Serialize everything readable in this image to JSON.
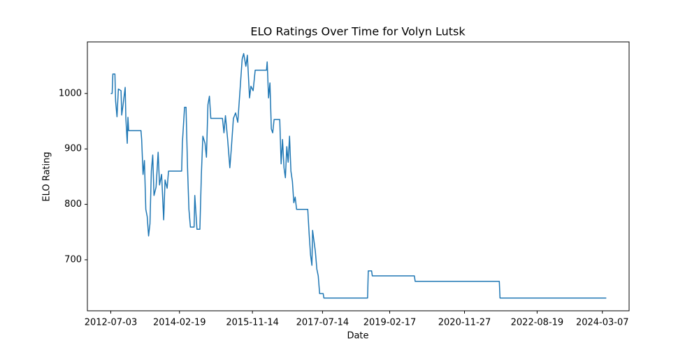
{
  "chart_data": {
    "type": "line",
    "title": "ELO Ratings Over Time for Volyn Lutsk",
    "x_label": "Date",
    "y_label": "ELO Rating",
    "color": "#1f77b4",
    "x": [
      "2012-07-03",
      "2012-07-15",
      "2012-07-21",
      "2012-08-08",
      "2012-08-14",
      "2012-08-26",
      "2012-09-07",
      "2012-09-30",
      "2012-10-06",
      "2012-10-18",
      "2012-11-05",
      "2012-11-11",
      "2012-11-23",
      "2012-11-29",
      "2012-12-05",
      "2013-03-22",
      "2013-03-28",
      "2013-04-09",
      "2013-04-21",
      "2013-05-03",
      "2013-05-15",
      "2013-05-27",
      "2013-06-08",
      "2013-06-20",
      "2013-07-02",
      "2013-07-13",
      "2013-07-31",
      "2013-08-18",
      "2013-08-30",
      "2013-09-17",
      "2013-10-05",
      "2013-10-17",
      "2013-11-04",
      "2013-11-16",
      "2014-03-10",
      "2014-03-16",
      "2014-04-04",
      "2014-04-17",
      "2014-04-30",
      "2014-05-12",
      "2014-05-25",
      "2014-06-26",
      "2014-07-02",
      "2014-07-21",
      "2014-08-15",
      "2014-08-28",
      "2014-09-10",
      "2014-09-29",
      "2014-10-11",
      "2014-10-24",
      "2014-11-06",
      "2014-11-18",
      "2015-02-27",
      "2015-03-12",
      "2015-03-25",
      "2015-04-13",
      "2015-05-02",
      "2015-05-14",
      "2015-06-02",
      "2015-06-21",
      "2015-07-10",
      "2015-07-29",
      "2015-08-17",
      "2015-08-30",
      "2015-09-18",
      "2015-10-01",
      "2015-10-20",
      "2015-11-01",
      "2015-11-20",
      "2015-12-08",
      "2016-03-15",
      "2016-03-21",
      "2016-04-02",
      "2016-04-14",
      "2016-04-26",
      "2016-05-08",
      "2016-05-20",
      "2016-07-08",
      "2016-07-20",
      "2016-08-01",
      "2016-08-14",
      "2016-08-26",
      "2016-09-07",
      "2016-09-19",
      "2016-10-01",
      "2016-10-13",
      "2016-10-26",
      "2016-11-07",
      "2016-11-19",
      "2016-12-01",
      "2017-03-08",
      "2017-03-20",
      "2017-04-01",
      "2017-04-13",
      "2017-04-19",
      "2017-05-01",
      "2017-05-13",
      "2017-05-26",
      "2017-06-07",
      "2017-06-19",
      "2017-07-20",
      "2017-07-26",
      "2018-08-09",
      "2018-08-15",
      "2018-09-13",
      "2018-09-19",
      "2019-09-19",
      "2019-09-26",
      "2021-09-25",
      "2021-10-01",
      "2024-04-10"
    ],
    "values": [
      1000,
      1000,
      1035,
      1035,
      986,
      958,
      1008,
      1005,
      961,
      980,
      1011,
      955,
      910,
      957,
      933,
      933,
      917,
      854,
      879,
      791,
      778,
      743,
      765,
      860,
      889,
      816,
      831,
      894,
      835,
      854,
      772,
      844,
      829,
      860,
      860,
      910,
      975,
      975,
      866,
      791,
      759,
      759,
      816,
      755,
      755,
      854,
      923,
      910,
      885,
      980,
      995,
      955,
      955,
      929,
      960,
      917,
      866,
      898,
      955,
      965,
      948,
      1005,
      1062,
      1072,
      1049,
      1069,
      992,
      1013,
      1005,
      1042,
      1042,
      1057,
      992,
      1019,
      936,
      929,
      953,
      953,
      873,
      917,
      866,
      848,
      904,
      876,
      923,
      860,
      841,
      803,
      813,
      791,
      791,
      747,
      709,
      690,
      753,
      734,
      715,
      683,
      671,
      639,
      639,
      631,
      631,
      680,
      680,
      671,
      671,
      661,
      661,
      631,
      631
    ],
    "xlim": [
      "2011-12-13",
      "2024-10-25"
    ],
    "xticks": [
      "2012-07-03",
      "2014-02-19",
      "2015-11-14",
      "2017-07-14",
      "2019-02-17",
      "2020-11-27",
      "2022-08-19",
      "2024-03-07"
    ],
    "ylim": [
      608,
      1093
    ],
    "yticks": [
      700,
      800,
      900,
      1000
    ]
  }
}
